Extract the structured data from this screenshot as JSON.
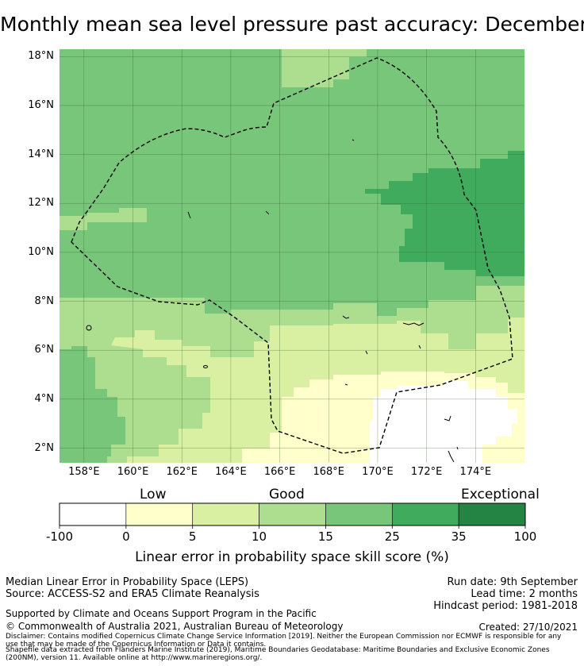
{
  "title": "Monthly mean sea level pressure past accuracy: December",
  "map": {
    "lat_labels": [
      "18°N",
      "16°N",
      "14°N",
      "12°N",
      "10°N",
      "8°N",
      "6°N",
      "4°N",
      "2°N"
    ],
    "lon_labels": [
      "158°E",
      "160°E",
      "162°E",
      "164°E",
      "166°E",
      "168°E",
      "170°E",
      "172°E",
      "174°E"
    ],
    "lat_values": [
      18,
      16,
      14,
      12,
      10,
      8,
      6,
      4,
      2
    ],
    "lon_values": [
      158,
      160,
      162,
      164,
      166,
      168,
      170,
      172,
      174
    ],
    "extent": {
      "lon_min": 157,
      "lon_max": 176,
      "lat_min": 1.4,
      "lat_max": 18.3
    }
  },
  "colorbar": {
    "categories": [
      "Low",
      "Good",
      "Exceptional"
    ],
    "ticks": [
      "-100",
      "0",
      "5",
      "10",
      "15",
      "25",
      "35",
      "100"
    ],
    "colors": [
      "#ffffff",
      "#ffffcc",
      "#d9f0a3",
      "#addd8e",
      "#78c679",
      "#41ab5d",
      "#238443"
    ],
    "title": "Linear error in probability space skill score (%)"
  },
  "footer": {
    "left_line1": "Median Linear Error in Probability Space (LEPS)",
    "left_line2": "Source: ACCESS-S2 and ERA5 Climate Reanalysis",
    "right_line1": "Run date: 9th September",
    "right_line2": "Lead time: 2 months",
    "right_line3": "Hindcast period: 1981-2018",
    "support": "Supported by Climate and Oceans Support Program in the Pacific",
    "copyright": "© Commonwealth of Australia 2021, Australian Bureau of Meteorology",
    "created": "Created: 27/10/2021",
    "disclaimer_1": "Disclaimer: Contains modified Copernicus Climate Change Service Information [2019]. Neither the European Commission nor ECMWF is responsible for any",
    "disclaimer_2": "use that may be made of the Copernicus Information or Data it contains.",
    "shapefile_1": "Shapefile data extracted from Flanders Marine Institute (2019), Maritime Boundaries Geodatabase: Maritime Boundaries and Exclusive Economic Zones",
    "shapefile_2": "(200NM), version 11. Available online at http://www.marineregions.org/."
  }
}
